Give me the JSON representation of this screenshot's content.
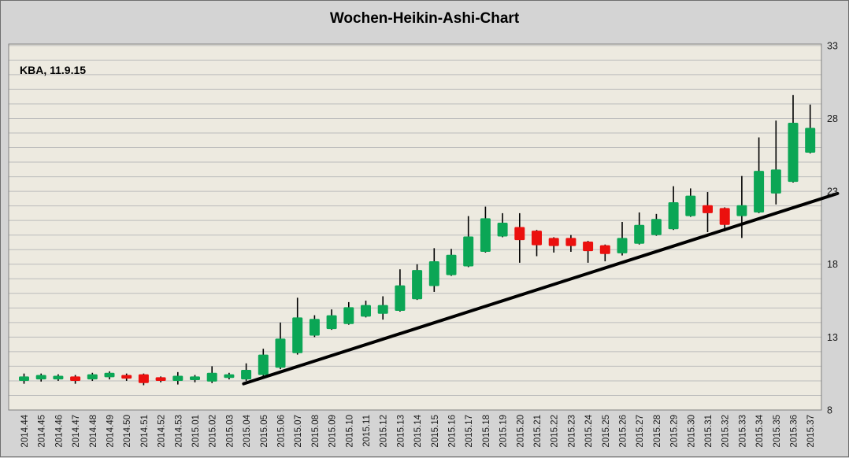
{
  "title": "Wochen-Heikin-Ashi-Chart",
  "annotation": "KBA, 11.9.15",
  "colors": {
    "outer_background": "#d4d4d4",
    "plot_background": "#edeae0",
    "gridline": "#bcbcbc",
    "plot_border": "#808080",
    "candle_up": "#0ba655",
    "candle_down": "#eb100e",
    "wick": "#000000",
    "trendline": "#000000",
    "axis_text": "#1a1a1a"
  },
  "chart_data": {
    "type": "candlestick",
    "subtype": "weekly-heikin-ashi",
    "title": "Wochen-Heikin-Ashi-Chart",
    "annotation": "KBA, 11.9.15",
    "ylim": [
      8,
      33.1
    ],
    "yticks": [
      8,
      13,
      18,
      23,
      28,
      33
    ],
    "grid_step": 1,
    "grid": "horizontal",
    "y_axis_position": "right",
    "x_label_rotation": -90,
    "categories": [
      "2014.44",
      "2014.45",
      "2014.46",
      "2014.47",
      "2014.48",
      "2014.49",
      "2014.50",
      "2014.51",
      "2014.52",
      "2014.53",
      "2015.01",
      "2015.02",
      "2015.03",
      "2015.04",
      "2015.05",
      "2015.06",
      "2015.07",
      "2015.08",
      "2015.09",
      "2015.10",
      "2015.11",
      "2015.12",
      "2015.13",
      "2015.14",
      "2015.15",
      "2015.16",
      "2015.17",
      "2015.18",
      "2015.19",
      "2015.20",
      "2015.21",
      "2015.22",
      "2015.23",
      "2015.24",
      "2015.25",
      "2015.26",
      "2015.27",
      "2015.28",
      "2015.29",
      "2015.30",
      "2015.31",
      "2015.32",
      "2015.33",
      "2015.34",
      "2015.35",
      "2015.36",
      "2015.37"
    ],
    "candles": [
      {
        "week": "2014.44",
        "low": 9.8,
        "body_low": 10.0,
        "body_high": 10.3,
        "high": 10.5,
        "dir": "up"
      },
      {
        "week": "2014.45",
        "low": 9.95,
        "body_low": 10.1,
        "body_high": 10.4,
        "high": 10.5,
        "dir": "up"
      },
      {
        "week": "2014.46",
        "low": 10.0,
        "body_low": 10.1,
        "body_high": 10.35,
        "high": 10.45,
        "dir": "up"
      },
      {
        "week": "2014.47",
        "low": 9.8,
        "body_low": 10.0,
        "body_high": 10.3,
        "high": 10.4,
        "dir": "down"
      },
      {
        "week": "2014.48",
        "low": 10.0,
        "body_low": 10.1,
        "body_high": 10.45,
        "high": 10.55,
        "dir": "up"
      },
      {
        "week": "2014.49",
        "low": 10.1,
        "body_low": 10.25,
        "body_high": 10.55,
        "high": 10.65,
        "dir": "up"
      },
      {
        "week": "2014.50",
        "low": 10.0,
        "body_low": 10.15,
        "body_high": 10.4,
        "high": 10.5,
        "dir": "down"
      },
      {
        "week": "2014.51",
        "low": 9.7,
        "body_low": 9.85,
        "body_high": 10.45,
        "high": 10.5,
        "dir": "down"
      },
      {
        "week": "2014.52",
        "low": 9.9,
        "body_low": 10.0,
        "body_high": 10.25,
        "high": 10.3,
        "dir": "down"
      },
      {
        "week": "2014.53",
        "low": 9.75,
        "body_low": 10.0,
        "body_high": 10.35,
        "high": 10.6,
        "dir": "up"
      },
      {
        "week": "2015.01",
        "low": 9.9,
        "body_low": 10.05,
        "body_high": 10.3,
        "high": 10.4,
        "dir": "up"
      },
      {
        "week": "2015.02",
        "low": 9.85,
        "body_low": 9.95,
        "body_high": 10.55,
        "high": 11.0,
        "dir": "up"
      },
      {
        "week": "2015.03",
        "low": 10.1,
        "body_low": 10.2,
        "body_high": 10.45,
        "high": 10.55,
        "dir": "up"
      },
      {
        "week": "2015.04",
        "low": 10.0,
        "body_low": 10.1,
        "body_high": 10.75,
        "high": 11.2,
        "dir": "up"
      },
      {
        "week": "2015.05",
        "low": 10.3,
        "body_low": 10.4,
        "body_high": 11.8,
        "high": 12.2,
        "dir": "up"
      },
      {
        "week": "2015.06",
        "low": 10.8,
        "body_low": 10.9,
        "body_high": 12.9,
        "high": 14.0,
        "dir": "up"
      },
      {
        "week": "2015.07",
        "low": 11.8,
        "body_low": 11.9,
        "body_high": 14.35,
        "high": 15.7,
        "dir": "up"
      },
      {
        "week": "2015.08",
        "low": 13.0,
        "body_low": 13.1,
        "body_high": 14.25,
        "high": 14.5,
        "dir": "up"
      },
      {
        "week": "2015.09",
        "low": 13.5,
        "body_low": 13.55,
        "body_high": 14.5,
        "high": 14.9,
        "dir": "up"
      },
      {
        "week": "2015.10",
        "low": 13.85,
        "body_low": 13.9,
        "body_high": 15.05,
        "high": 15.4,
        "dir": "up"
      },
      {
        "week": "2015.11",
        "low": 14.35,
        "body_low": 14.4,
        "body_high": 15.2,
        "high": 15.5,
        "dir": "up"
      },
      {
        "week": "2015.12",
        "low": 14.2,
        "body_low": 14.6,
        "body_high": 15.2,
        "high": 15.8,
        "dir": "up"
      },
      {
        "week": "2015.13",
        "low": 14.75,
        "body_low": 14.8,
        "body_high": 16.55,
        "high": 17.65,
        "dir": "up"
      },
      {
        "week": "2015.14",
        "low": 15.55,
        "body_low": 15.6,
        "body_high": 17.6,
        "high": 18.0,
        "dir": "up"
      },
      {
        "week": "2015.15",
        "low": 16.1,
        "body_low": 16.5,
        "body_high": 18.2,
        "high": 19.1,
        "dir": "up"
      },
      {
        "week": "2015.16",
        "low": 17.2,
        "body_low": 17.25,
        "body_high": 18.65,
        "high": 19.05,
        "dir": "up"
      },
      {
        "week": "2015.17",
        "low": 17.8,
        "body_low": 17.85,
        "body_high": 19.9,
        "high": 21.3,
        "dir": "up"
      },
      {
        "week": "2015.18",
        "low": 18.8,
        "body_low": 18.85,
        "body_high": 21.15,
        "high": 21.95,
        "dir": "up"
      },
      {
        "week": "2015.19",
        "low": 19.85,
        "body_low": 19.9,
        "body_high": 20.85,
        "high": 21.5,
        "dir": "up"
      },
      {
        "week": "2015.20",
        "low": 18.1,
        "body_low": 19.65,
        "body_high": 20.55,
        "high": 21.5,
        "dir": "down"
      },
      {
        "week": "2015.21",
        "low": 18.55,
        "body_low": 19.3,
        "body_high": 20.3,
        "high": 20.35,
        "dir": "down"
      },
      {
        "week": "2015.22",
        "low": 18.8,
        "body_low": 19.25,
        "body_high": 19.8,
        "high": 19.85,
        "dir": "down"
      },
      {
        "week": "2015.23",
        "low": 18.85,
        "body_low": 19.25,
        "body_high": 19.8,
        "high": 20.0,
        "dir": "down"
      },
      {
        "week": "2015.24",
        "low": 18.1,
        "body_low": 18.9,
        "body_high": 19.55,
        "high": 19.6,
        "dir": "down"
      },
      {
        "week": "2015.25",
        "low": 18.2,
        "body_low": 18.7,
        "body_high": 19.3,
        "high": 19.35,
        "dir": "down"
      },
      {
        "week": "2015.26",
        "low": 18.6,
        "body_low": 18.75,
        "body_high": 19.8,
        "high": 20.9,
        "dir": "up"
      },
      {
        "week": "2015.27",
        "low": 19.35,
        "body_low": 19.4,
        "body_high": 20.7,
        "high": 21.55,
        "dir": "up"
      },
      {
        "week": "2015.28",
        "low": 19.95,
        "body_low": 20.0,
        "body_high": 21.1,
        "high": 21.45,
        "dir": "up"
      },
      {
        "week": "2015.29",
        "low": 20.35,
        "body_low": 20.4,
        "body_high": 22.25,
        "high": 23.35,
        "dir": "up"
      },
      {
        "week": "2015.30",
        "low": 21.25,
        "body_low": 21.3,
        "body_high": 22.7,
        "high": 23.2,
        "dir": "up"
      },
      {
        "week": "2015.31",
        "low": 20.2,
        "body_low": 21.5,
        "body_high": 22.05,
        "high": 22.95,
        "dir": "down"
      },
      {
        "week": "2015.32",
        "low": 20.25,
        "body_low": 20.7,
        "body_high": 21.85,
        "high": 21.9,
        "dir": "down"
      },
      {
        "week": "2015.33",
        "low": 19.8,
        "body_low": 21.3,
        "body_high": 22.05,
        "high": 24.05,
        "dir": "up"
      },
      {
        "week": "2015.34",
        "low": 21.5,
        "body_low": 21.55,
        "body_high": 24.4,
        "high": 26.7,
        "dir": "up"
      },
      {
        "week": "2015.35",
        "low": 22.1,
        "body_low": 22.85,
        "body_high": 24.5,
        "high": 27.85,
        "dir": "up"
      },
      {
        "week": "2015.36",
        "low": 23.6,
        "body_low": 23.65,
        "body_high": 27.7,
        "high": 29.6,
        "dir": "up"
      },
      {
        "week": "2015.37",
        "low": 25.6,
        "body_low": 25.65,
        "body_high": 27.35,
        "high": 28.95,
        "dir": "up"
      }
    ],
    "trendline": {
      "from_week_index": 12.85,
      "from_value": 9.8,
      "to_week_index": 47.6,
      "to_value": 22.85
    }
  }
}
